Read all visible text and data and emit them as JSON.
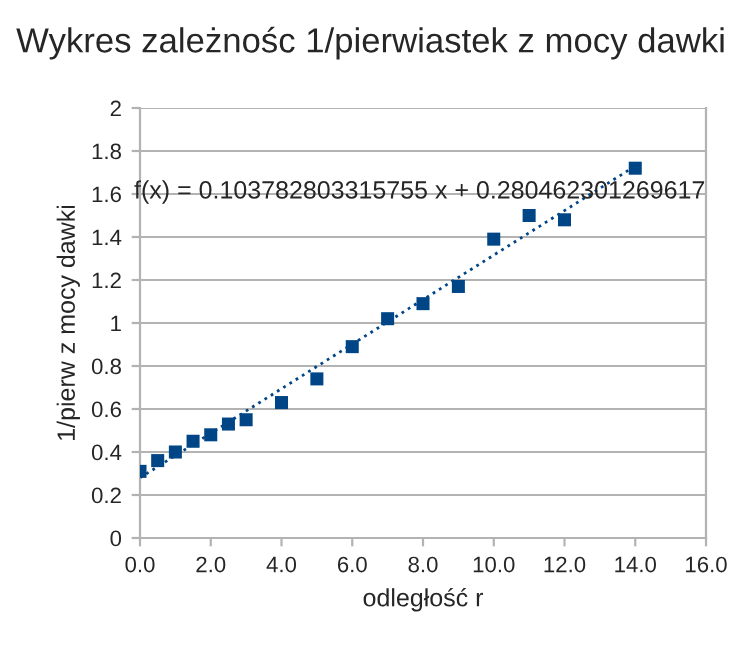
{
  "chart_data": {
    "type": "scatter",
    "title": "Wykres zależnośc 1/pierwiastek z mocy dawki",
    "xlabel": "odległość r",
    "ylabel": "1/pierw z mocy dawki",
    "series": [
      {
        "color": "#004586",
        "x": [
          0,
          0.5,
          1,
          1.5,
          2,
          2.5,
          3,
          4,
          5,
          6,
          7,
          8,
          9,
          10,
          11,
          12,
          14
        ],
        "values": [
          0.31,
          0.36,
          0.4,
          0.45,
          0.48,
          0.53,
          0.55,
          0.63,
          0.74,
          0.89,
          1.02,
          1.09,
          1.17,
          1.39,
          1.5,
          1.48,
          1.72
        ],
        "marker": "square"
      },
      {
        "type": "line",
        "color": "#004586",
        "x": [
          0,
          14
        ],
        "values": [
          0.28,
          1.73
        ],
        "line_style": "dotted"
      }
    ],
    "annotations": [
      "f(x) = 0.103782803315755 x + 0.280462301269617"
    ],
    "xlim": [
      0,
      16
    ],
    "xticks": [
      {
        "value": 0,
        "label": "0.0"
      },
      {
        "value": 2,
        "label": "2.0"
      },
      {
        "value": 4,
        "label": "4.0"
      },
      {
        "value": 6,
        "label": "6.0"
      },
      {
        "value": 8,
        "label": "8.0"
      },
      {
        "value": 10,
        "label": "10.0"
      },
      {
        "value": 12,
        "label": "12.0"
      },
      {
        "value": 14,
        "label": "14.0"
      },
      {
        "value": 16,
        "label": "16.0"
      }
    ],
    "ylim": [
      0,
      2
    ],
    "yticks": [
      0,
      0.2,
      0.4,
      0.6,
      0.8,
      1,
      1.2,
      1.4,
      1.6,
      1.8,
      2
    ],
    "grid": "y",
    "legend": false
  }
}
